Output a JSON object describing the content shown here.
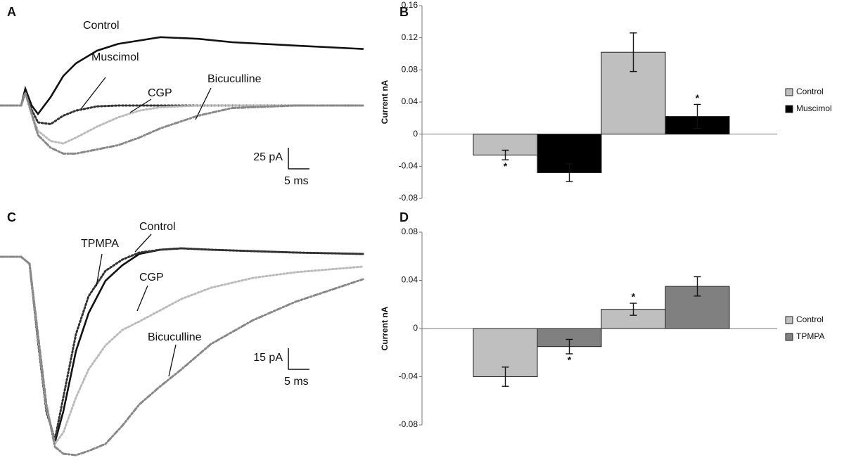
{
  "chart_data": [
    {
      "type": "line",
      "panel": "A",
      "x": [
        -5,
        0,
        1,
        2.5,
        4,
        7,
        10,
        13,
        18,
        23,
        28,
        33,
        42,
        50,
        65,
        81
      ],
      "series": [
        {
          "name": "Control",
          "color": "#111111",
          "style": "solid",
          "values": [
            0,
            0,
            20,
            0,
            -10,
            10,
            35,
            50,
            65,
            73,
            77,
            81,
            79,
            75,
            71,
            67
          ]
        },
        {
          "name": "Muscimol",
          "color": "#333333",
          "style": "dotted",
          "values": [
            0,
            0,
            15,
            -5,
            -20,
            -22,
            -12,
            -6,
            -1,
            0,
            0,
            0,
            0,
            0,
            0,
            0
          ]
        },
        {
          "name": "CGP",
          "color": "#bbbbbb",
          "style": "dotted",
          "values": [
            0,
            0,
            15,
            -10,
            -30,
            -42,
            -45,
            -38,
            -25,
            -14,
            -6,
            -2,
            0,
            0,
            0,
            0
          ]
        },
        {
          "name": "Bicuculline",
          "color": "#888888",
          "style": "dashdot",
          "values": [
            0,
            0,
            15,
            -10,
            -35,
            -50,
            -57,
            -57,
            -52,
            -47,
            -38,
            -27,
            -12,
            -3,
            0,
            0
          ]
        }
      ],
      "scale_bar": {
        "x": 5,
        "x_label": "5 ms",
        "y": 25,
        "y_label": "25 pA"
      }
    },
    {
      "type": "bar",
      "panel": "B",
      "y_label": "Current nA",
      "categories": [
        null,
        null
      ],
      "series": [
        {
          "name": "Control",
          "color": "#bfbfbf",
          "values": [
            -0.026,
            0.102
          ],
          "errors": [
            0.006,
            0.024
          ],
          "significance": [
            "*",
            null
          ]
        },
        {
          "name": "Muscimol",
          "color": "#000000",
          "values": [
            -0.048,
            0.022
          ],
          "errors": [
            0.011,
            0.015
          ],
          "significance": [
            null,
            "*"
          ]
        }
      ],
      "ylim": [
        -0.08,
        0.16
      ],
      "yticks": [
        -0.08,
        -0.04,
        0,
        0.04,
        0.08,
        0.12,
        0.16
      ],
      "legend": "right"
    },
    {
      "type": "line",
      "panel": "C",
      "x": [
        -5,
        0,
        2,
        4,
        6,
        8,
        10,
        13,
        16,
        20,
        24,
        28,
        33,
        38,
        45,
        55,
        65,
        81
      ],
      "series": [
        {
          "name": "Control",
          "color": "#111111",
          "style": "solid",
          "values": [
            0,
            0,
            -5,
            -57,
            -107,
            -132,
            -110,
            -67,
            -40,
            -17,
            -6,
            2,
            5,
            6,
            5,
            4,
            3,
            2
          ]
        },
        {
          "name": "TPMPA",
          "color": "#333333",
          "style": "dotted",
          "values": [
            0,
            0,
            -5,
            -60,
            -110,
            -130,
            -100,
            -55,
            -28,
            -10,
            -2,
            3,
            5,
            6,
            5,
            4,
            3,
            2
          ]
        },
        {
          "name": "CGP",
          "color": "#bbbbbb",
          "style": "dotted",
          "values": [
            0,
            0,
            -5,
            -57,
            -107,
            -133,
            -125,
            -100,
            -80,
            -63,
            -52,
            -46,
            -38,
            -30,
            -22,
            -15,
            -11,
            -7
          ]
        },
        {
          "name": "Bicuculline",
          "color": "#888888",
          "style": "dashdot",
          "values": [
            0,
            0,
            -5,
            -55,
            -105,
            -135,
            -140,
            -141,
            -138,
            -133,
            -120,
            -105,
            -92,
            -80,
            -62,
            -45,
            -32,
            -16
          ]
        }
      ],
      "scale_bar": {
        "x": 5,
        "x_label": "5 ms",
        "y": 15,
        "y_label": "15 pA"
      }
    },
    {
      "type": "bar",
      "panel": "D",
      "y_label": "Current nA",
      "categories": [
        null,
        null
      ],
      "series": [
        {
          "name": "Control",
          "color": "#bfbfbf",
          "values": [
            -0.04,
            0.016
          ],
          "errors": [
            0.008,
            0.005
          ],
          "significance": [
            null,
            "*"
          ]
        },
        {
          "name": "TPMPA",
          "color": "#808080",
          "values": [
            -0.015,
            0.035
          ],
          "errors": [
            0.006,
            0.008
          ],
          "significance": [
            "*",
            null
          ]
        }
      ],
      "ylim": [
        -0.08,
        0.08
      ],
      "yticks": [
        -0.08,
        -0.04,
        0,
        0.04,
        0.08
      ],
      "legend": "right"
    }
  ]
}
